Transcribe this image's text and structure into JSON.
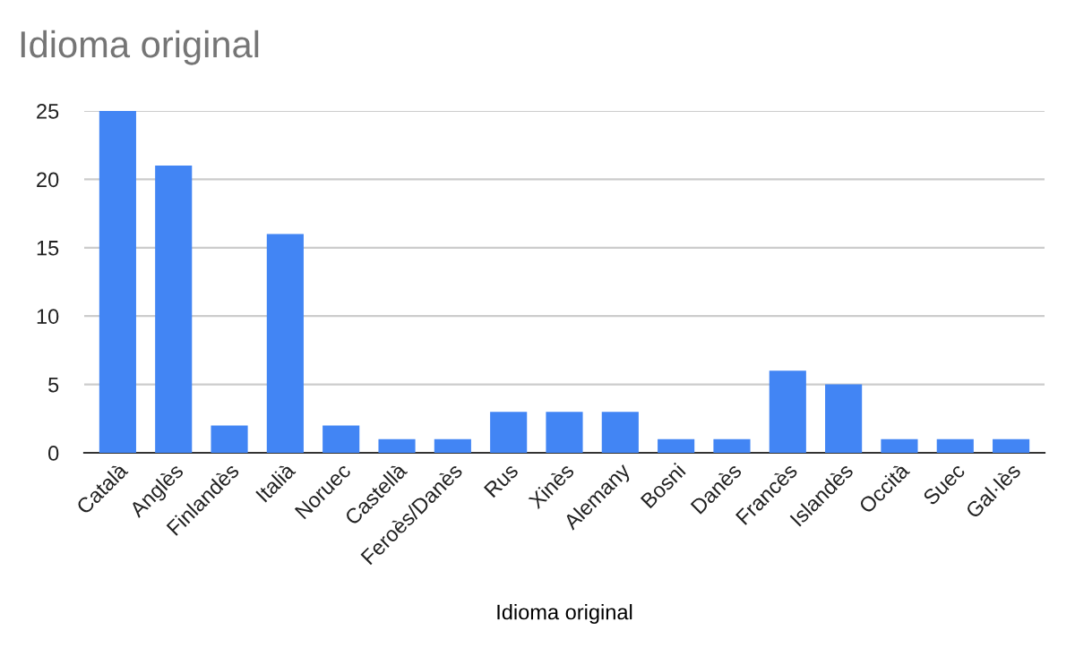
{
  "chart_data": {
    "type": "bar",
    "title": "Idioma original",
    "xlabel": "Idioma original",
    "categories": [
      "Català",
      "Anglès",
      "Finlandès",
      "Italià",
      "Noruec",
      "Castellà",
      "Feroès/Danès",
      "Rus",
      "Xinès",
      "Alemany",
      "Bosni",
      "Danès",
      "Francès",
      "Islandès",
      "Occità",
      "Suec",
      "Gal·lès"
    ],
    "values": [
      25,
      21,
      2,
      16,
      2,
      1,
      1,
      3,
      3,
      3,
      1,
      1,
      6,
      5,
      1,
      1,
      1
    ],
    "color": "#4285f4",
    "ylim": [
      0,
      25
    ],
    "yticks": [
      0,
      5,
      10,
      15,
      20,
      25
    ],
    "grid": "y",
    "legend": false
  }
}
